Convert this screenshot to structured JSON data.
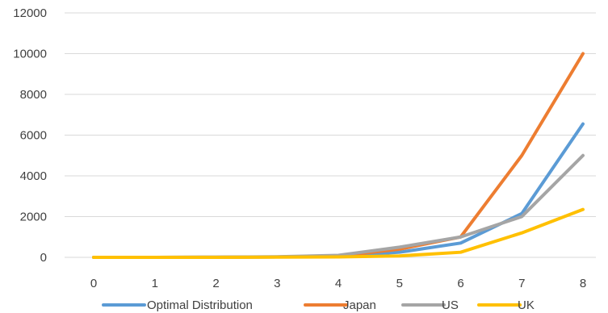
{
  "chart_data": {
    "type": "line",
    "title": "",
    "xlabel": "",
    "ylabel": "",
    "x": [
      0,
      1,
      2,
      3,
      4,
      5,
      6,
      7,
      8
    ],
    "xlim": [
      0,
      8
    ],
    "ylim": [
      0,
      12000
    ],
    "y_ticks": [
      0,
      2000,
      4000,
      6000,
      8000,
      10000,
      12000
    ],
    "grid": "horizontal",
    "legend_position": "bottom",
    "series": [
      {
        "name": "Optimal Distribution",
        "color": "#5b9bd5",
        "values": [
          0,
          0,
          5,
          20,
          60,
          250,
          700,
          2150,
          6550
        ]
      },
      {
        "name": "Japan",
        "color": "#ed7d31",
        "values": [
          0,
          0,
          5,
          20,
          60,
          400,
          1000,
          5000,
          10000
        ]
      },
      {
        "name": "US",
        "color": "#a5a5a5",
        "values": [
          0,
          0,
          10,
          30,
          100,
          500,
          1000,
          2000,
          5000
        ]
      },
      {
        "name": "UK",
        "color": "#ffc000",
        "values": [
          0,
          0,
          2,
          8,
          20,
          70,
          250,
          1200,
          2350
        ]
      }
    ]
  }
}
